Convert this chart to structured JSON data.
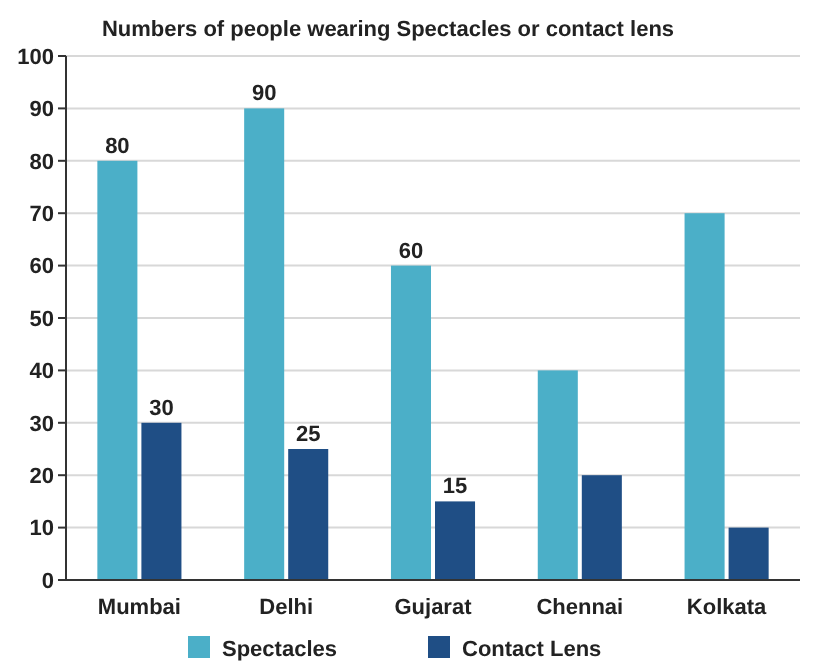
{
  "chart_data": {
    "type": "bar",
    "title": "Numbers of people wearing Spectacles or contact lens",
    "categories": [
      "Mumbai",
      "Delhi",
      "Gujarat",
      "Chennai",
      "Kolkata"
    ],
    "series": [
      {
        "name": "Spectacles",
        "color": "#4bafc8",
        "values": [
          80,
          90,
          60,
          40,
          70
        ],
        "value_labels": [
          "80",
          "90",
          "60",
          null,
          null
        ]
      },
      {
        "name": "Contact Lens",
        "color": "#1f4e85",
        "values": [
          30,
          25,
          15,
          20,
          10
        ],
        "value_labels": [
          "30",
          "25",
          "15",
          null,
          null
        ]
      }
    ],
    "ylim": [
      0,
      100
    ],
    "yticks": [
      0,
      10,
      20,
      30,
      40,
      50,
      60,
      70,
      80,
      90,
      100
    ],
    "grid": "y",
    "legend": "bottom"
  }
}
